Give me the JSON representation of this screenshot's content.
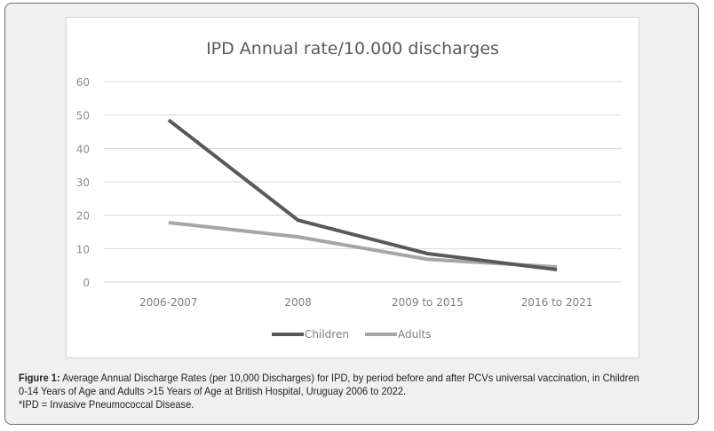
{
  "chart_data": {
    "type": "line",
    "title": "IPD Annual rate/10.000 discharges",
    "xlabel": "",
    "ylabel": "",
    "categories": [
      "2006-2007",
      "2008",
      "2009 to 2015",
      "2016 to 2021"
    ],
    "series": [
      {
        "name": "Children",
        "color": "#595959",
        "values": [
          48.5,
          18.5,
          8.5,
          3.7
        ]
      },
      {
        "name": "Adults",
        "color": "#a6a6a6",
        "values": [
          17.8,
          13.5,
          6.8,
          4.5
        ]
      }
    ],
    "ylim": [
      0,
      60
    ],
    "yticks": [
      0,
      10,
      20,
      30,
      40,
      50,
      60
    ],
    "grid": true,
    "legend": "bottom"
  },
  "caption": {
    "label": "Figure 1:",
    "text": " Average Annual Discharge Rates (per 10,000 Discharges) for IPD, by period before and after PCVs universal vaccination, in Children 0-14 Years of Age and Adults >15 Years of Age at British Hospital, Uruguay 2006 to 2022.",
    "note": "*IPD = Invasive Pneumococcal Disease."
  }
}
